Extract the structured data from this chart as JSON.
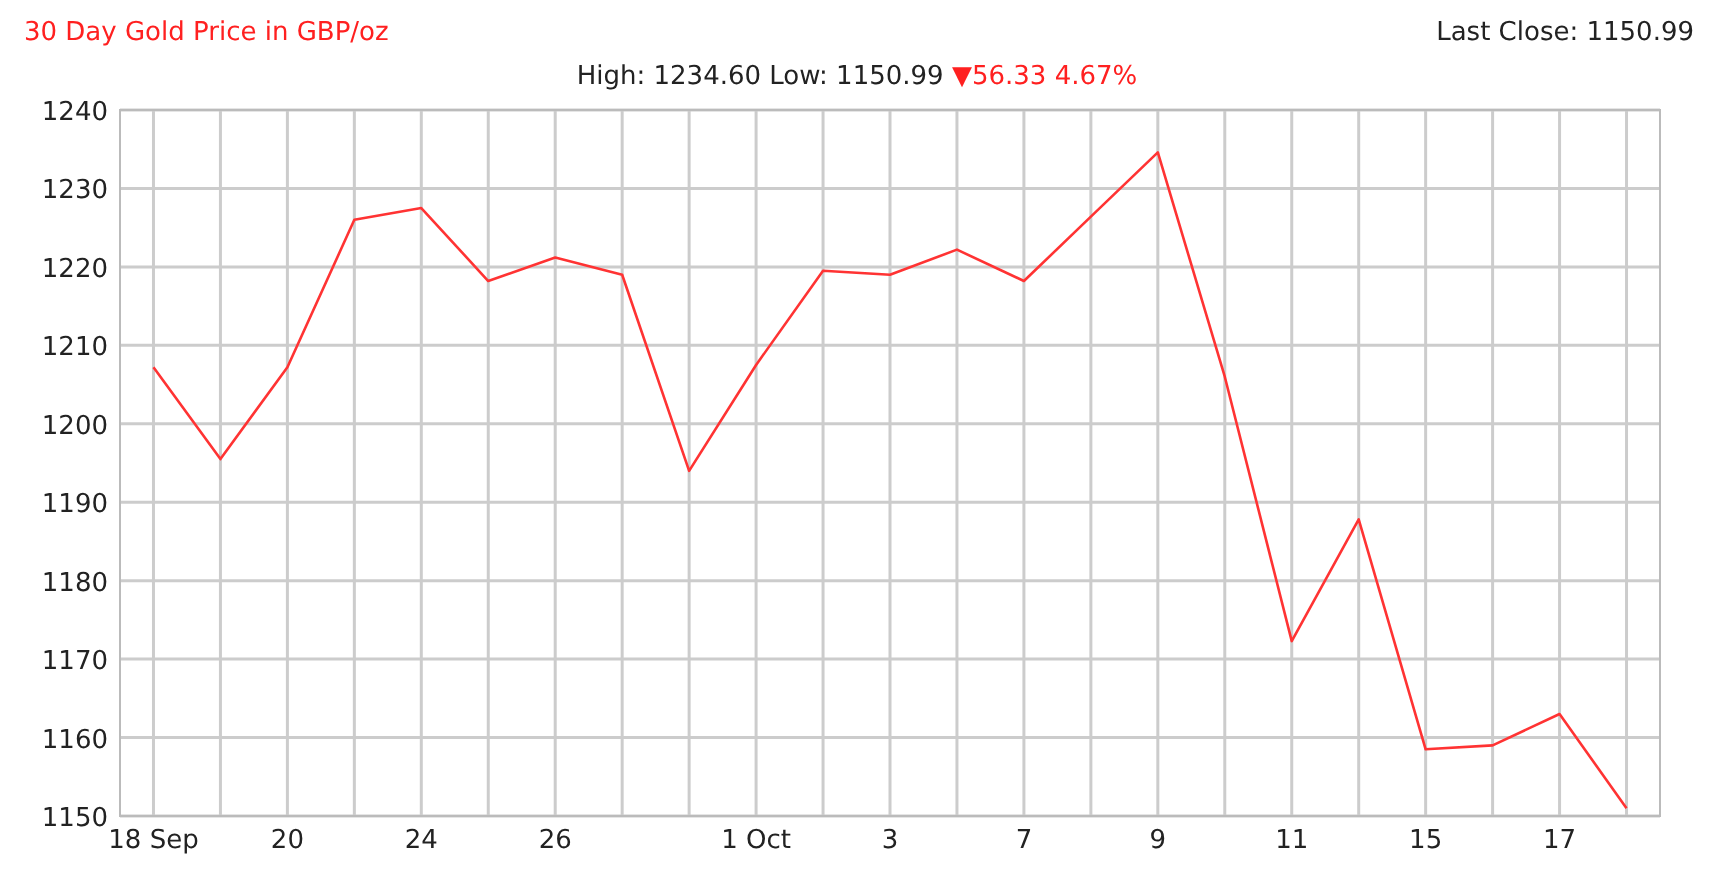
{
  "chart_data": {
    "type": "line",
    "title": "30 Day Gold Price in GBP/oz",
    "subtitle": "High: 1234.60 Low: 1150.99",
    "annotations": [
      "▼56.33 4.67%",
      "Last Close: 1150.99"
    ],
    "categories": [
      "18 Sep",
      null,
      "20",
      null,
      "24",
      null,
      "26",
      null,
      null,
      "1 Oct",
      null,
      "3",
      null,
      "7",
      null,
      "9",
      null,
      "11",
      null,
      "15",
      null,
      "17",
      null
    ],
    "series": [
      {
        "color": "#ff3333",
        "values": [
          1207.2,
          1195.5,
          1207.2,
          1226,
          1227.5,
          1218.2,
          1221.2,
          1219,
          1194,
          1207.5,
          1219.5,
          1219,
          1222.2,
          1218.2,
          1226.4,
          1234.6,
          1206,
          1172.3,
          1187.8,
          1158.5,
          1159,
          1163,
          1150.99
        ]
      }
    ],
    "ylim": [
      1150,
      1240
    ],
    "yticks": [
      1150,
      1160,
      1170,
      1180,
      1190,
      1200,
      1210,
      1220,
      1230,
      1240
    ],
    "grid": true,
    "marker": "none",
    "line_style": "solid"
  }
}
